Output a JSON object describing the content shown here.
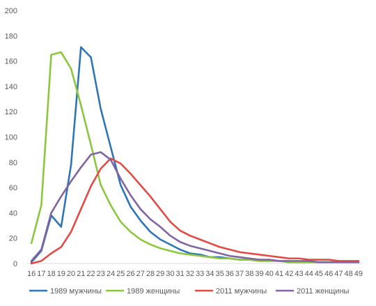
{
  "chart_data": {
    "type": "line",
    "title": "",
    "xlabel": "",
    "ylabel": "",
    "ylim": [
      0,
      200
    ],
    "yticks": [
      0,
      20,
      40,
      60,
      80,
      100,
      120,
      140,
      160,
      180,
      200
    ],
    "grid": false,
    "legend": "bottom",
    "categories": [
      "16",
      "17",
      "18",
      "19",
      "20",
      "21",
      "22",
      "23",
      "24",
      "25",
      "26",
      "27",
      "28",
      "29",
      "30",
      "31",
      "32",
      "33",
      "34",
      "35",
      "36",
      "37",
      "38",
      "39",
      "40",
      "41",
      "42",
      "43",
      "44",
      "45",
      "46",
      "47",
      "48",
      "49"
    ],
    "series": [
      {
        "name": "1989 мужчины",
        "color": "#2e75b6",
        "values": [
          1,
          10,
          38,
          29,
          78,
          171,
          163,
          122,
          92,
          62,
          45,
          34,
          25,
          19,
          15,
          11,
          8,
          7,
          5,
          5,
          4,
          3,
          3,
          2,
          2,
          2,
          1,
          1,
          1,
          1,
          1,
          1,
          1,
          1
        ]
      },
      {
        "name": "1989 женщины",
        "color": "#8cc63f",
        "values": [
          16,
          46,
          165,
          167,
          154,
          125,
          94,
          62,
          46,
          33,
          25,
          19,
          15,
          12,
          10,
          8,
          7,
          6,
          5,
          4,
          4,
          3,
          3,
          2,
          2,
          2,
          1,
          1,
          1,
          1,
          1,
          1,
          1,
          1
        ]
      },
      {
        "name": "2011 мужчины",
        "color": "#e04b46",
        "values": [
          0,
          2,
          8,
          13,
          25,
          43,
          61,
          75,
          83,
          79,
          71,
          62,
          53,
          43,
          33,
          26,
          22,
          19,
          16,
          13,
          11,
          9,
          8,
          7,
          6,
          5,
          4,
          4,
          3,
          3,
          3,
          2,
          2,
          2
        ]
      },
      {
        "name": "2011 женщины",
        "color": "#8064a2",
        "values": [
          2,
          11,
          40,
          53,
          65,
          76,
          86,
          88,
          82,
          67,
          54,
          43,
          35,
          29,
          22,
          17,
          14,
          12,
          10,
          8,
          6,
          5,
          4,
          3,
          3,
          2,
          2,
          2,
          2,
          1,
          1,
          1,
          1,
          1
        ]
      }
    ]
  }
}
